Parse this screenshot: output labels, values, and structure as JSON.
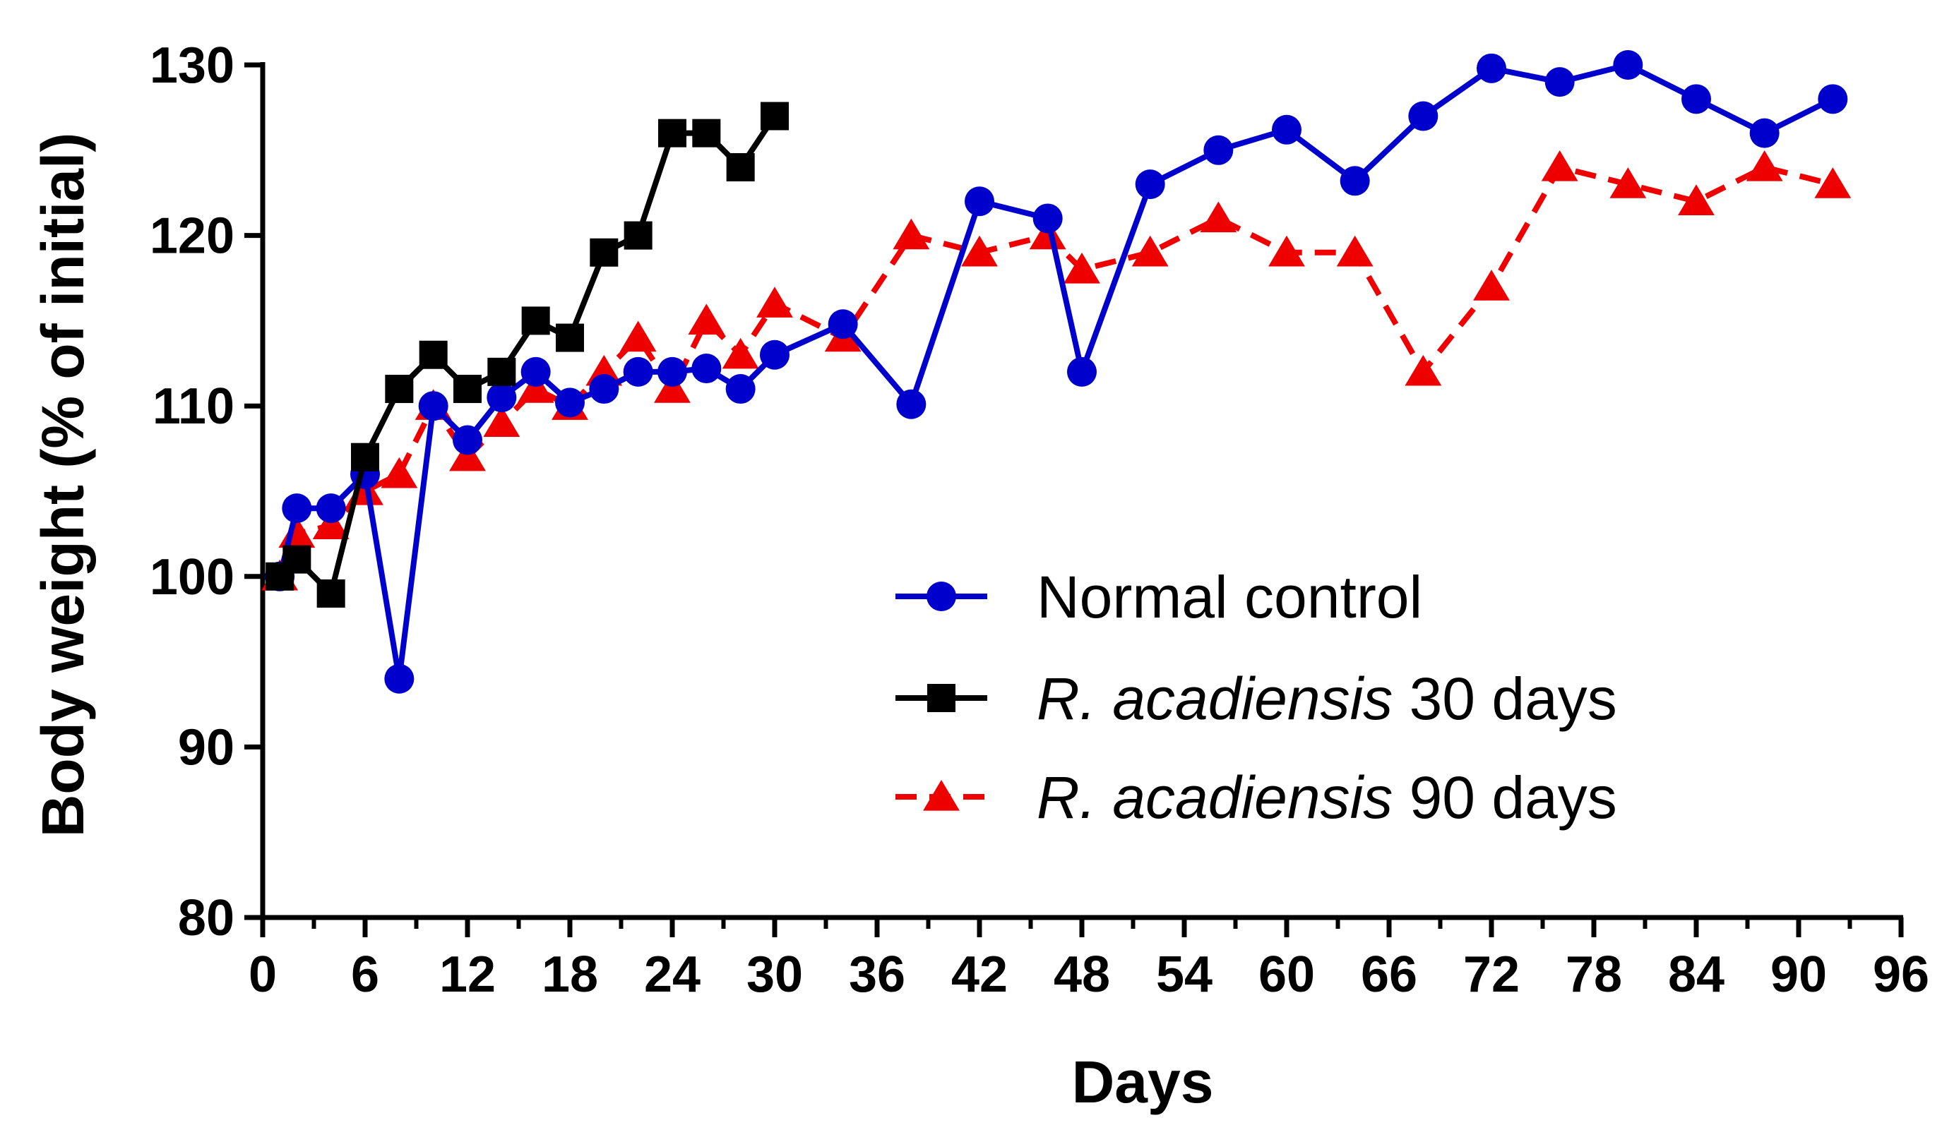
{
  "chart_data": {
    "type": "line",
    "xlabel": "Days",
    "ylabel": "Body weight (% of initial)",
    "xlim": [
      0,
      96
    ],
    "ylim": [
      80,
      130
    ],
    "x_ticks": [
      0,
      6,
      12,
      18,
      24,
      30,
      36,
      42,
      48,
      54,
      60,
      66,
      72,
      78,
      84,
      90,
      96
    ],
    "y_ticks": [
      80,
      90,
      100,
      110,
      120,
      130
    ],
    "grid": false,
    "legend_position": "right-center",
    "series": [
      {
        "name": "Normal control",
        "legend_italic": "",
        "legend_regular": "Normal control",
        "color": "#0000cc",
        "marker": "circle",
        "dash": "solid",
        "points": [
          [
            1,
            100
          ],
          [
            2,
            104
          ],
          [
            4,
            104
          ],
          [
            6,
            106
          ],
          [
            8,
            94
          ],
          [
            10,
            110
          ],
          [
            12,
            108
          ],
          [
            14,
            110.5
          ],
          [
            16,
            112
          ],
          [
            18,
            110.2
          ],
          [
            20,
            111
          ],
          [
            22,
            112
          ],
          [
            24,
            112
          ],
          [
            26,
            112.2
          ],
          [
            28,
            111
          ],
          [
            30,
            113
          ],
          [
            34,
            114.8
          ],
          [
            38,
            110.1
          ],
          [
            42,
            122
          ],
          [
            46,
            121
          ],
          [
            48,
            112
          ],
          [
            52,
            123
          ],
          [
            56,
            125
          ],
          [
            60,
            126.2
          ],
          [
            64,
            123.2
          ],
          [
            68,
            127
          ],
          [
            72,
            129.8
          ],
          [
            76,
            129
          ],
          [
            80,
            130
          ],
          [
            84,
            128
          ],
          [
            88,
            126
          ],
          [
            92,
            128
          ]
        ]
      },
      {
        "name": "R. acadiensis 30 days",
        "legend_italic": "R. acadiensis",
        "legend_regular": " 30 days",
        "color": "#000000",
        "marker": "square",
        "dash": "solid",
        "points": [
          [
            1,
            100
          ],
          [
            2,
            101
          ],
          [
            4,
            99
          ],
          [
            6,
            107
          ],
          [
            8,
            111
          ],
          [
            10,
            113
          ],
          [
            12,
            111
          ],
          [
            14,
            112
          ],
          [
            16,
            115
          ],
          [
            18,
            114
          ],
          [
            20,
            119
          ],
          [
            22,
            120
          ],
          [
            24,
            126
          ],
          [
            26,
            126
          ],
          [
            28,
            124
          ],
          [
            30,
            127
          ]
        ]
      },
      {
        "name": "R. acadiensis 90 days",
        "legend_italic": "R. acadiensis",
        "legend_regular": " 90 days",
        "color": "#ee0000",
        "marker": "triangle",
        "dash": "dashed",
        "points": [
          [
            1,
            100
          ],
          [
            2,
            102.5
          ],
          [
            4,
            103
          ],
          [
            6,
            105
          ],
          [
            8,
            106
          ],
          [
            10,
            110
          ],
          [
            12,
            107
          ],
          [
            14,
            109
          ],
          [
            16,
            111
          ],
          [
            18,
            110
          ],
          [
            20,
            112
          ],
          [
            22,
            114
          ],
          [
            24,
            111
          ],
          [
            26,
            115
          ],
          [
            28,
            113
          ],
          [
            30,
            116
          ],
          [
            34,
            114
          ],
          [
            38,
            120
          ],
          [
            42,
            119
          ],
          [
            46,
            120
          ],
          [
            48,
            118
          ],
          [
            52,
            119
          ],
          [
            56,
            121
          ],
          [
            60,
            119
          ],
          [
            64,
            119
          ],
          [
            68,
            112
          ],
          [
            72,
            117
          ],
          [
            76,
            124
          ],
          [
            80,
            123
          ],
          [
            84,
            122
          ],
          [
            88,
            124
          ],
          [
            92,
            123
          ]
        ]
      }
    ]
  }
}
